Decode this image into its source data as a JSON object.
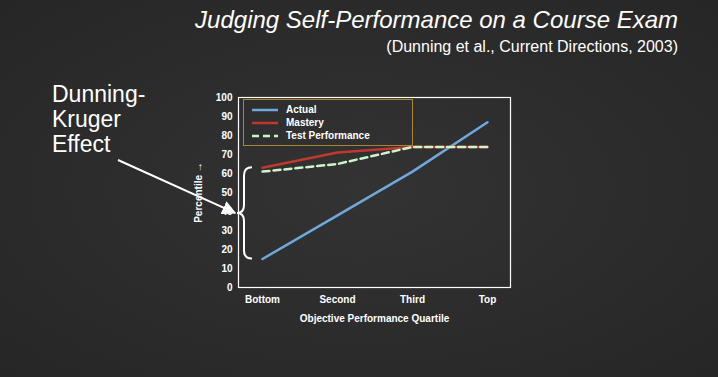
{
  "chart_data": {
    "type": "line",
    "title": "Judging Self-Performance on a Course Exam",
    "subtitle": "(Dunning et al., Current Directions, 2003)",
    "annotation": "Dunning-Kruger Effect",
    "x_label": "Objective Performance Quartile",
    "y_label": "Percentile",
    "categories": [
      "Bottom",
      "Second",
      "Third",
      "Top"
    ],
    "series": [
      {
        "name": "Actual",
        "color": "#6fa8dc",
        "line_style": "solid",
        "values": [
          15,
          38,
          61,
          87
        ]
      },
      {
        "name": "Mastery",
        "color": "#c0392b",
        "line_style": "solid",
        "values": [
          63,
          71,
          74,
          74
        ]
      },
      {
        "name": "Test Performance",
        "color": "#ccf5cc",
        "line_style": "dashed",
        "values": [
          61,
          65,
          74,
          74
        ]
      }
    ],
    "ylim": [
      0,
      100
    ],
    "yticks": [
      0,
      10,
      20,
      30,
      40,
      50,
      60,
      70,
      80,
      90,
      100
    ],
    "grid": false,
    "legend": "top-left"
  }
}
